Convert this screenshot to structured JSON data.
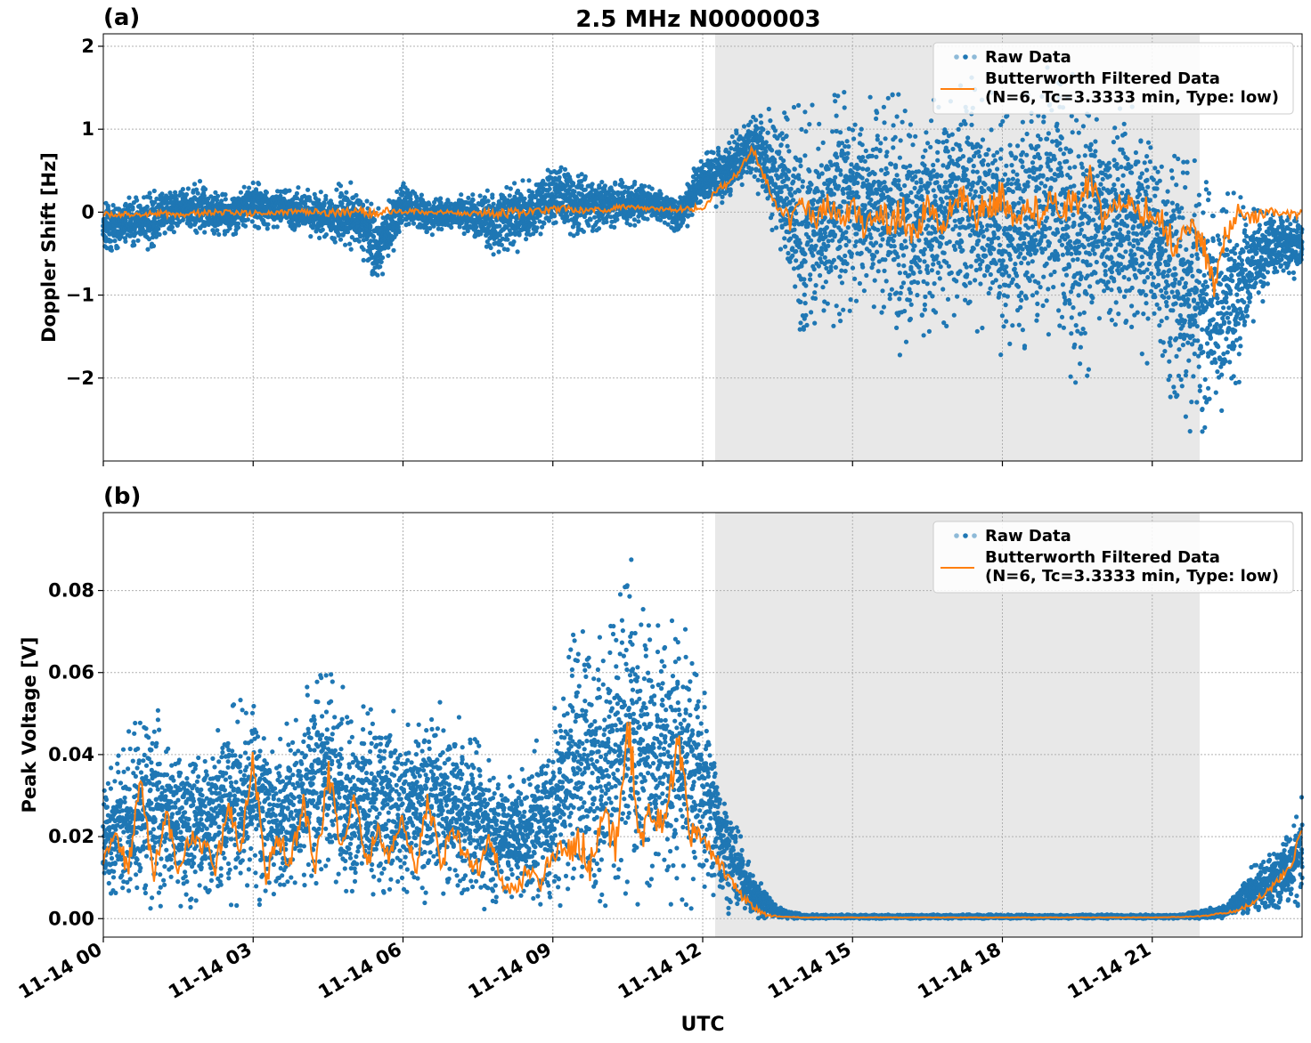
{
  "figure_title": "2.5 MHz N0000003",
  "colors": {
    "raw": "#1f77b4",
    "filtered": "#ff7f0e",
    "shade": "#e8e8e8",
    "grid": "#b0b0b0"
  },
  "chart_data": [
    {
      "panel_label": "(a)",
      "type": "scatter",
      "title": "2.5 MHz N0000003",
      "xlabel": "",
      "ylabel": "Doppler Shift [Hz]",
      "xlim_hours": [
        0,
        24
      ],
      "ylim": [
        -3.0,
        2.15
      ],
      "yticks": [
        2,
        1,
        0,
        -1,
        -2
      ],
      "ytick_labels": [
        "2",
        "1",
        "0",
        "−1",
        "−2"
      ],
      "grid": true,
      "legend_position": "top-right",
      "shaded_region_hours": [
        12.25,
        21.95
      ],
      "series": [
        {
          "name": "Raw Data",
          "kind": "points",
          "x_hours": [
            0.0,
            0.5,
            1.0,
            1.5,
            2.0,
            2.5,
            3.0,
            3.5,
            4.0,
            4.5,
            5.0,
            5.5,
            6.0,
            6.5,
            7.0,
            7.5,
            8.0,
            8.5,
            9.0,
            9.5,
            10.0,
            10.5,
            11.0,
            11.5,
            12.0,
            12.5,
            13.0,
            13.5,
            14.0,
            14.5,
            15.0,
            15.5,
            16.0,
            16.5,
            17.0,
            17.5,
            18.0,
            18.5,
            19.0,
            19.5,
            20.0,
            20.5,
            21.0,
            21.5,
            22.0,
            22.5,
            23.0,
            23.5,
            24.0
          ],
          "y_min": [
            -0.6,
            -0.4,
            -0.5,
            -0.2,
            -0.3,
            -0.3,
            -0.2,
            -0.2,
            -0.3,
            -0.4,
            -0.5,
            -0.9,
            -0.2,
            -0.3,
            -0.2,
            -0.4,
            -0.6,
            -0.4,
            -0.2,
            -0.3,
            -0.2,
            -0.2,
            -0.1,
            -0.3,
            0.0,
            0.1,
            0.4,
            -0.5,
            -1.6,
            -1.5,
            -1.2,
            -1.2,
            -2.0,
            -1.5,
            -1.4,
            -1.5,
            -1.9,
            -1.8,
            -1.6,
            -2.3,
            -1.5,
            -1.7,
            -1.9,
            -2.5,
            -2.8,
            -2.7,
            -1.4,
            -0.8,
            -0.9
          ],
          "y_max": [
            0.1,
            0.2,
            0.3,
            0.3,
            0.4,
            0.2,
            0.4,
            0.3,
            0.3,
            0.3,
            0.4,
            0.1,
            0.4,
            0.2,
            0.2,
            0.3,
            0.4,
            0.4,
            0.6,
            0.5,
            0.4,
            0.4,
            0.3,
            0.2,
            0.8,
            0.9,
            1.2,
            1.3,
            1.3,
            1.4,
            1.5,
            1.4,
            1.5,
            1.5,
            1.6,
            1.8,
            1.5,
            1.6,
            1.8,
            1.7,
            1.4,
            1.4,
            1.2,
            1.0,
            0.5,
            0.3,
            0.2,
            0.1,
            0.0
          ]
        },
        {
          "name": "Butterworth Filtered Data\n(N=6, Tc=3.3333 min, Type: low)",
          "kind": "line",
          "x_hours": [
            0.0,
            0.5,
            1.0,
            1.5,
            2.0,
            2.5,
            3.0,
            3.5,
            4.0,
            4.5,
            5.0,
            5.5,
            6.0,
            6.5,
            7.0,
            7.5,
            8.0,
            8.5,
            9.0,
            9.5,
            10.0,
            10.5,
            11.0,
            11.5,
            12.0,
            12.25,
            12.5,
            12.75,
            13.0,
            13.25,
            13.5,
            13.75,
            14.0,
            14.25,
            14.5,
            14.75,
            15.0,
            15.25,
            15.5,
            15.75,
            16.0,
            16.25,
            16.5,
            16.75,
            17.0,
            17.25,
            17.5,
            17.75,
            18.0,
            18.25,
            18.5,
            18.75,
            19.0,
            19.25,
            19.5,
            19.75,
            20.0,
            20.25,
            20.5,
            20.75,
            21.0,
            21.25,
            21.5,
            21.75,
            22.0,
            22.25,
            22.5,
            22.75,
            23.0,
            23.5,
            24.0
          ],
          "y": [
            -0.02,
            -0.03,
            -0.01,
            -0.03,
            -0.01,
            0.0,
            -0.02,
            -0.01,
            0.01,
            -0.01,
            0.0,
            0.0,
            0.02,
            0.0,
            0.0,
            -0.02,
            -0.01,
            0.0,
            0.05,
            0.02,
            0.03,
            0.07,
            0.04,
            0.03,
            0.05,
            0.25,
            0.35,
            0.5,
            0.78,
            0.4,
            0.0,
            -0.1,
            0.1,
            -0.15,
            0.12,
            -0.1,
            0.05,
            -0.2,
            0.08,
            -0.15,
            0.0,
            -0.3,
            0.1,
            -0.2,
            0.05,
            0.25,
            -0.05,
            0.1,
            0.2,
            -0.1,
            0.15,
            -0.05,
            0.2,
            0.0,
            0.15,
            0.42,
            -0.1,
            0.1,
            0.2,
            0.0,
            0.05,
            -0.15,
            -0.45,
            -0.2,
            -0.35,
            -0.9,
            -0.2,
            0.0,
            -0.05,
            0.0,
            -0.03
          ]
        }
      ]
    },
    {
      "panel_label": "(b)",
      "type": "scatter",
      "title": "",
      "xlabel": "UTC",
      "ylabel": "Peak Voltage [V]",
      "xlim_hours": [
        0,
        24
      ],
      "ylim": [
        -0.0045,
        0.099
      ],
      "yticks": [
        0.0,
        0.02,
        0.04,
        0.06,
        0.08
      ],
      "ytick_labels": [
        "0.00",
        "0.02",
        "0.04",
        "0.06",
        "0.08"
      ],
      "xticks_hours": [
        0,
        3,
        6,
        9,
        12,
        15,
        18,
        21
      ],
      "xtick_labels": [
        "11-14 00",
        "11-14 03",
        "11-14 06",
        "11-14 09",
        "11-14 12",
        "11-14 15",
        "11-14 18",
        "11-14 21"
      ],
      "grid": true,
      "legend_position": "top-right",
      "shaded_region_hours": [
        12.25,
        21.95
      ],
      "series": [
        {
          "name": "Raw Data",
          "kind": "points",
          "x_hours": [
            0.0,
            0.5,
            1.0,
            1.5,
            2.0,
            2.5,
            3.0,
            3.5,
            4.0,
            4.5,
            5.0,
            5.5,
            6.0,
            6.5,
            7.0,
            7.5,
            8.0,
            8.5,
            9.0,
            9.5,
            10.0,
            10.5,
            11.0,
            11.5,
            12.0,
            12.5,
            13.0,
            13.5,
            14.0,
            15.0,
            16.0,
            17.0,
            18.0,
            19.0,
            20.0,
            21.0,
            21.5,
            22.0,
            22.5,
            23.0,
            23.5,
            24.0
          ],
          "y_min": [
            0.002,
            0.003,
            0.002,
            0.003,
            0.002,
            0.003,
            0.003,
            0.002,
            0.003,
            0.003,
            0.003,
            0.003,
            0.003,
            0.003,
            0.003,
            0.002,
            0.001,
            0.002,
            0.002,
            0.003,
            0.002,
            0.002,
            0.002,
            0.003,
            0.002,
            0.001,
            0.0,
            0.0,
            0.0,
            0.0,
            0.0,
            0.0,
            0.0,
            0.0,
            0.0,
            0.0,
            0.0,
            0.0,
            0.0,
            0.001,
            0.001,
            0.002
          ],
          "y_max": [
            0.032,
            0.048,
            0.053,
            0.043,
            0.045,
            0.052,
            0.058,
            0.045,
            0.055,
            0.068,
            0.05,
            0.055,
            0.048,
            0.055,
            0.052,
            0.045,
            0.038,
            0.04,
            0.05,
            0.075,
            0.07,
            0.094,
            0.07,
            0.079,
            0.06,
            0.03,
            0.012,
            0.003,
            0.001,
            0.001,
            0.001,
            0.001,
            0.001,
            0.001,
            0.001,
            0.001,
            0.001,
            0.002,
            0.004,
            0.013,
            0.018,
            0.03
          ]
        },
        {
          "name": "Butterworth Filtered Data\n(N=6, Tc=3.3333 min, Type: low)",
          "kind": "line",
          "x_hours": [
            0.0,
            0.25,
            0.5,
            0.75,
            1.0,
            1.25,
            1.5,
            1.75,
            2.0,
            2.25,
            2.5,
            2.75,
            3.0,
            3.25,
            3.5,
            3.75,
            4.0,
            4.25,
            4.5,
            4.75,
            5.0,
            5.25,
            5.5,
            5.75,
            6.0,
            6.25,
            6.5,
            6.75,
            7.0,
            7.25,
            7.5,
            7.75,
            8.0,
            8.25,
            8.5,
            8.75,
            9.0,
            9.25,
            9.5,
            9.75,
            10.0,
            10.25,
            10.5,
            10.75,
            11.0,
            11.25,
            11.5,
            11.75,
            12.0,
            12.25,
            12.5,
            12.75,
            13.0,
            13.25,
            13.5,
            14.0,
            15.0,
            16.0,
            17.0,
            18.0,
            19.0,
            20.0,
            21.0,
            21.5,
            22.0,
            22.25,
            22.5,
            22.75,
            23.0,
            23.25,
            23.5,
            23.75,
            24.0
          ],
          "y": [
            0.015,
            0.02,
            0.012,
            0.035,
            0.01,
            0.026,
            0.012,
            0.02,
            0.018,
            0.012,
            0.028,
            0.015,
            0.04,
            0.01,
            0.02,
            0.013,
            0.028,
            0.012,
            0.036,
            0.018,
            0.03,
            0.014,
            0.02,
            0.015,
            0.025,
            0.012,
            0.03,
            0.013,
            0.022,
            0.015,
            0.012,
            0.02,
            0.008,
            0.007,
            0.012,
            0.008,
            0.017,
            0.015,
            0.02,
            0.013,
            0.025,
            0.018,
            0.048,
            0.02,
            0.026,
            0.022,
            0.045,
            0.02,
            0.022,
            0.015,
            0.01,
            0.006,
            0.003,
            0.001,
            0.0005,
            0.0003,
            0.0003,
            0.0003,
            0.0003,
            0.0003,
            0.0003,
            0.0003,
            0.0003,
            0.0004,
            0.0006,
            0.001,
            0.0015,
            0.002,
            0.004,
            0.006,
            0.009,
            0.012,
            0.022
          ]
        }
      ]
    }
  ]
}
